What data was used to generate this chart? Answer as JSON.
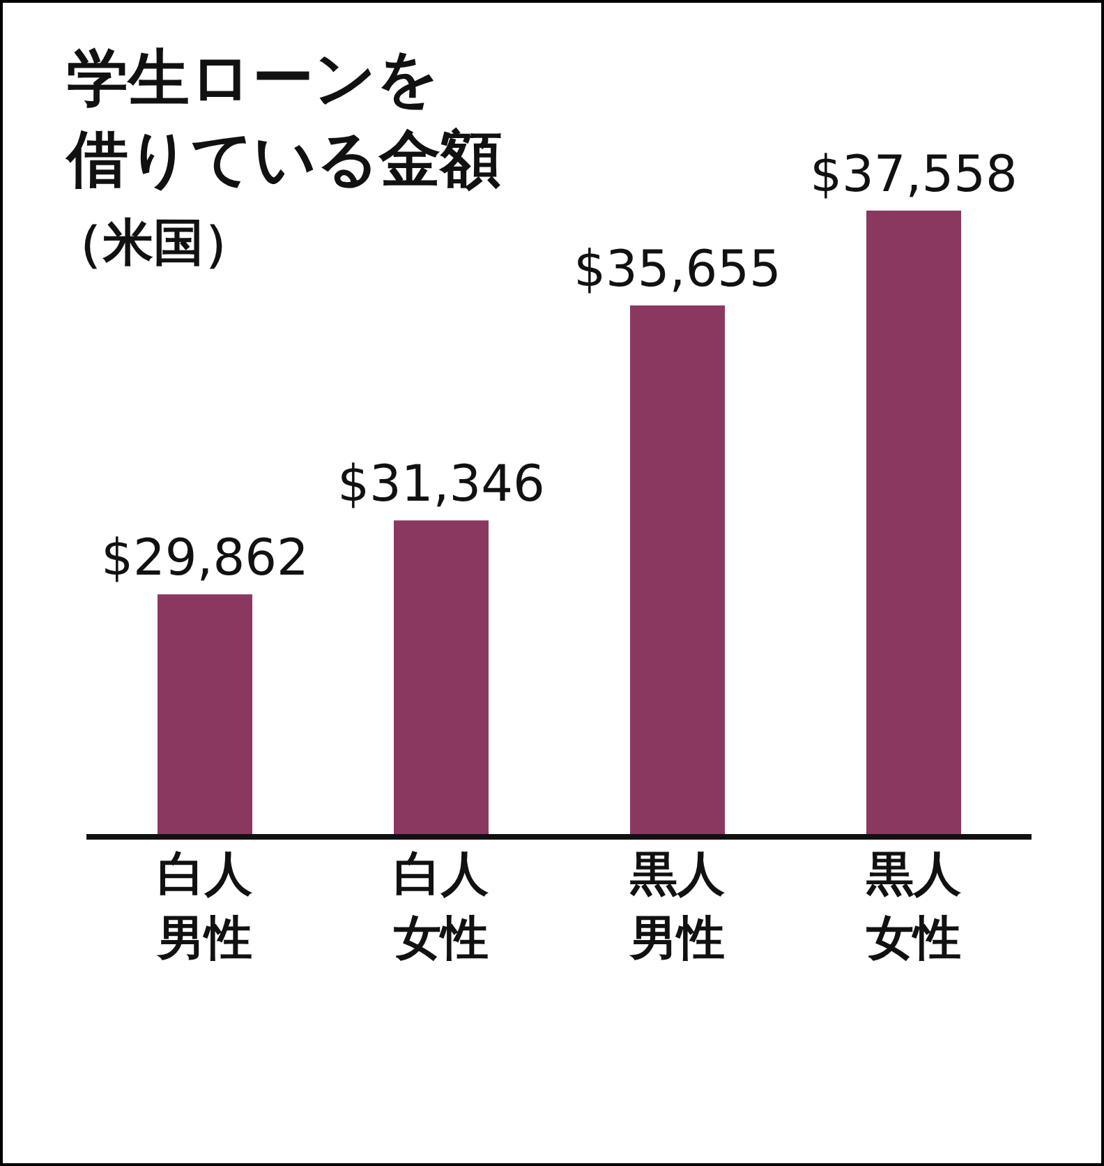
{
  "chart_data": {
    "type": "bar",
    "title": "学生ローンを借りている金額",
    "subtitle": "（米国）",
    "categories": [
      "白人男性",
      "白人女性",
      "黒人男性",
      "黒人女性"
    ],
    "values": [
      29862,
      31346,
      35655,
      37558
    ],
    "value_labels": [
      "$29,862",
      "$31,346",
      "$35,655",
      "$37,558"
    ],
    "color": "#8b3860",
    "ylim": [
      25000,
      37558
    ],
    "tick_labels": "x"
  }
}
